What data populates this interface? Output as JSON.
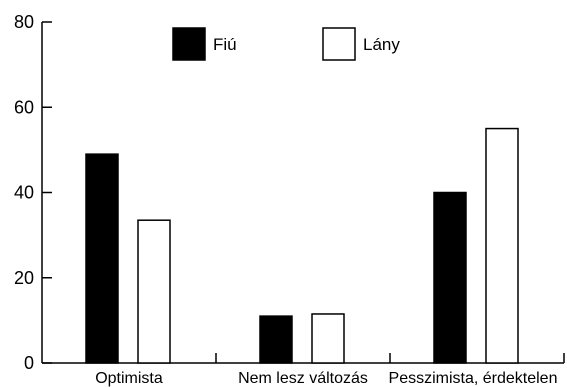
{
  "chart_data": {
    "type": "bar",
    "categories": [
      "Optimista",
      "Nem lesz változás",
      "Pesszimista, érdektelen"
    ],
    "series": [
      {
        "name": "Fiú",
        "color": "#000000",
        "values": [
          49,
          11,
          40
        ]
      },
      {
        "name": "Lány",
        "color": "#ffffff",
        "values": [
          33.5,
          11.5,
          55
        ]
      }
    ],
    "y_ticks": [
      "0",
      "20",
      "40",
      "60",
      "80"
    ],
    "ylim": [
      0,
      80
    ],
    "grid": false,
    "legend_position": "top-center",
    "title": "",
    "xlabel": "",
    "ylabel": ""
  }
}
